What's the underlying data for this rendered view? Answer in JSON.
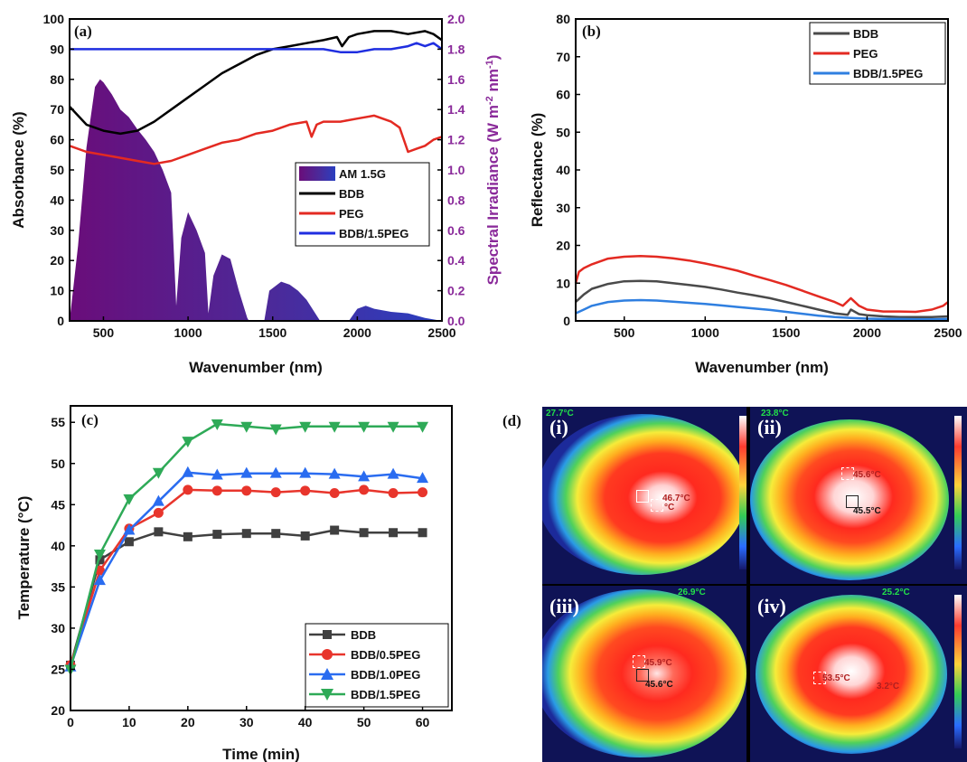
{
  "chart_data": [
    {
      "panel": "(a)",
      "type": "line",
      "xlabel": "Wavenumber (nm)",
      "ylabel": "Absorbance (%)",
      "y2label": "Spectral Irradiance (W m⁻² nm⁻¹)",
      "xlim": [
        300,
        2500
      ],
      "ylim": [
        0,
        100
      ],
      "y2lim": [
        0.0,
        2.0
      ],
      "xticks": [
        500,
        1000,
        1500,
        2000,
        2500
      ],
      "yticks": [
        0,
        10,
        20,
        30,
        40,
        50,
        60,
        70,
        80,
        90,
        100
      ],
      "y2ticks": [
        "0.0",
        "0.2",
        "0.4",
        "0.6",
        "0.8",
        "1.0",
        "1.2",
        "1.4",
        "1.6",
        "1.8",
        "2.0"
      ],
      "legend_position": "center-right",
      "series": [
        {
          "name": "AM 1.5G",
          "axis": "right",
          "color": "#5b1a8a",
          "x": [
            300,
            350,
            400,
            450,
            480,
            500,
            550,
            600,
            650,
            700,
            750,
            800,
            850,
            900,
            930,
            960,
            1000,
            1050,
            1100,
            1120,
            1150,
            1200,
            1250,
            1300,
            1350,
            1360,
            1450,
            1480,
            1550,
            1600,
            1650,
            1700,
            1780,
            1950,
            2000,
            2050,
            2100,
            2200,
            2300,
            2400,
            2500
          ],
          "y": [
            0.0,
            0.5,
            1.15,
            1.55,
            1.6,
            1.58,
            1.5,
            1.4,
            1.35,
            1.27,
            1.2,
            1.12,
            1.0,
            0.85,
            0.1,
            0.55,
            0.72,
            0.6,
            0.45,
            0.05,
            0.3,
            0.44,
            0.41,
            0.2,
            0.02,
            0.0,
            0.0,
            0.2,
            0.26,
            0.24,
            0.2,
            0.14,
            0.0,
            0.0,
            0.08,
            0.1,
            0.08,
            0.06,
            0.05,
            0.02,
            0.0
          ]
        },
        {
          "name": "BDB",
          "axis": "left",
          "color": "#000000",
          "x": [
            300,
            400,
            500,
            600,
            700,
            800,
            900,
            1000,
            1100,
            1200,
            1300,
            1400,
            1500,
            1600,
            1700,
            1800,
            1880,
            1910,
            1950,
            2000,
            2100,
            2200,
            2300,
            2400,
            2450,
            2500
          ],
          "y": [
            71,
            65,
            63,
            62,
            63,
            66,
            70,
            74,
            78,
            82,
            85,
            88,
            90,
            91,
            92,
            93,
            94,
            91,
            94,
            95,
            96,
            96,
            95,
            96,
            95,
            93
          ]
        },
        {
          "name": "PEG",
          "axis": "left",
          "color": "#e32a22",
          "x": [
            300,
            400,
            500,
            600,
            700,
            800,
            900,
            1000,
            1100,
            1200,
            1300,
            1400,
            1500,
            1600,
            1700,
            1730,
            1760,
            1800,
            1900,
            2000,
            2100,
            2200,
            2250,
            2300,
            2350,
            2400,
            2450,
            2500
          ],
          "y": [
            58,
            56,
            55,
            54,
            53,
            52,
            53,
            55,
            57,
            59,
            60,
            62,
            63,
            65,
            66,
            61,
            65,
            66,
            66,
            67,
            68,
            66,
            64,
            56,
            57,
            58,
            60,
            61
          ]
        },
        {
          "name": "BDB/1.5PEG",
          "axis": "left",
          "color": "#1f2ee0",
          "x": [
            300,
            500,
            1000,
            1500,
            1800,
            1900,
            2000,
            2100,
            2200,
            2300,
            2350,
            2400,
            2450,
            2500
          ],
          "y": [
            90,
            90,
            90,
            90,
            90,
            89,
            89,
            90,
            90,
            91,
            92,
            91,
            92,
            90
          ]
        }
      ]
    },
    {
      "panel": "(b)",
      "type": "line",
      "xlabel": "Wavenumber (nm)",
      "ylabel": "Reflectance (%)",
      "xlim": [
        200,
        2500
      ],
      "ylim": [
        0,
        80
      ],
      "xticks": [
        500,
        1000,
        1500,
        2000,
        2500
      ],
      "yticks": [
        0,
        10,
        20,
        30,
        40,
        50,
        60,
        70,
        80
      ],
      "legend_position": "top-right",
      "series": [
        {
          "name": "BDB",
          "color": "#4a4a4a",
          "x": [
            200,
            250,
            300,
            400,
            500,
            600,
            700,
            800,
            900,
            1000,
            1100,
            1200,
            1300,
            1400,
            1500,
            1600,
            1700,
            1800,
            1880,
            1900,
            1950,
            2000,
            2100,
            2200,
            2300,
            2400,
            2500
          ],
          "y": [
            5,
            7,
            8.5,
            9.8,
            10.5,
            10.6,
            10.5,
            10,
            9.5,
            9,
            8.3,
            7.5,
            6.8,
            6,
            5,
            4,
            3,
            2,
            1.6,
            3,
            1.8,
            1.5,
            1.2,
            1,
            1,
            1,
            1.2
          ]
        },
        {
          "name": "PEG",
          "color": "#e32a22",
          "x": [
            200,
            220,
            250,
            300,
            400,
            500,
            600,
            700,
            800,
            900,
            1000,
            1100,
            1200,
            1300,
            1400,
            1500,
            1600,
            1700,
            1800,
            1850,
            1900,
            1950,
            2000,
            2100,
            2200,
            2300,
            2400,
            2470,
            2500
          ],
          "y": [
            10,
            13,
            14,
            15,
            16.5,
            17,
            17.2,
            17,
            16.6,
            16,
            15.2,
            14.3,
            13.3,
            12,
            10.8,
            9.5,
            8,
            6.5,
            5,
            4,
            6,
            4,
            3,
            2.5,
            2.5,
            2.4,
            3,
            4,
            5
          ]
        },
        {
          "name": "BDB/1.5PEG",
          "color": "#2f7fe0",
          "x": [
            200,
            250,
            300,
            400,
            500,
            600,
            700,
            800,
            900,
            1000,
            1100,
            1200,
            1300,
            1400,
            1500,
            1600,
            1700,
            1800,
            1900,
            2000,
            2100,
            2200,
            2300,
            2400,
            2500
          ],
          "y": [
            2,
            3,
            4,
            5,
            5.4,
            5.5,
            5.4,
            5.1,
            4.8,
            4.5,
            4.1,
            3.7,
            3.3,
            2.9,
            2.4,
            1.9,
            1.4,
            1,
            0.8,
            0.6,
            0.5,
            0.5,
            0.4,
            0.4,
            0.5
          ]
        }
      ]
    },
    {
      "panel": "(c)",
      "type": "line",
      "xlabel": "Time (min)",
      "ylabel": "Temperature (°C)",
      "xlim": [
        0,
        65
      ],
      "ylim": [
        20,
        57
      ],
      "xticks": [
        0,
        10,
        20,
        30,
        40,
        50,
        60
      ],
      "yticks": [
        20,
        25,
        30,
        35,
        40,
        45,
        50,
        55
      ],
      "legend_position": "bottom-right",
      "x": [
        0,
        5,
        10,
        15,
        20,
        25,
        30,
        35,
        40,
        45,
        50,
        55,
        60
      ],
      "series": [
        {
          "name": "BDB",
          "marker": "square",
          "color": "#404040",
          "values": [
            25.5,
            38.3,
            40.5,
            41.7,
            41.1,
            41.4,
            41.5,
            41.5,
            41.2,
            41.9,
            41.6,
            41.6,
            41.6
          ]
        },
        {
          "name": "BDB/0.5PEG",
          "marker": "circle",
          "color": "#e8352c",
          "values": [
            25.5,
            37.0,
            42.1,
            44.0,
            46.8,
            46.7,
            46.7,
            46.5,
            46.7,
            46.4,
            46.8,
            46.4,
            46.5
          ]
        },
        {
          "name": "BDB/1.0PEG",
          "marker": "triangle-up",
          "color": "#2a6cf0",
          "values": [
            25.3,
            35.8,
            41.9,
            45.4,
            48.9,
            48.6,
            48.8,
            48.8,
            48.8,
            48.7,
            48.4,
            48.7,
            48.2
          ]
        },
        {
          "name": "BDB/1.5PEG",
          "marker": "triangle-down",
          "color": "#2eaa57",
          "values": [
            25.0,
            39.0,
            45.7,
            48.9,
            52.7,
            54.8,
            54.5,
            54.2,
            54.5,
            54.5,
            54.5,
            54.5,
            54.5
          ]
        }
      ]
    }
  ],
  "panel_d": {
    "label": "(d)",
    "images": [
      {
        "numeral": "(i)",
        "ambient": "27.7°C",
        "spot1": "46.7°C",
        "spot2": "°C"
      },
      {
        "numeral": "(ii)",
        "ambient": "23.8°C",
        "spot1": "45.6°C",
        "spot2": "45.5°C"
      },
      {
        "numeral": "(iii)",
        "ambient": "26.9°C",
        "spot1": "45.9°C",
        "spot2": "45.6°C"
      },
      {
        "numeral": "(iv)",
        "ambient": "25.2°C",
        "spot1": "53.5°C",
        "spot2": "3.2°C"
      }
    ]
  }
}
